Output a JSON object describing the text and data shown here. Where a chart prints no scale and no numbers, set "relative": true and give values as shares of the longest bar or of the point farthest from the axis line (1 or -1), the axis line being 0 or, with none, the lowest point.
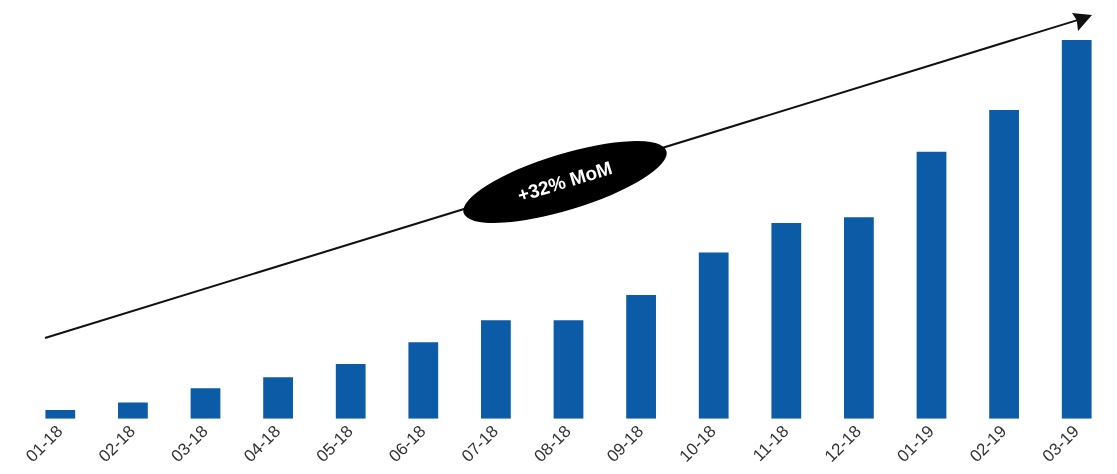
{
  "chart_data": {
    "type": "bar",
    "relative": true,
    "categories": [
      "01-18",
      "02-18",
      "03-18",
      "04-18",
      "05-18",
      "06-18",
      "07-18",
      "08-18",
      "09-18",
      "10-18",
      "11-18",
      "12-18",
      "01-19",
      "02-19",
      "03-19"
    ],
    "values": [
      0.023,
      0.043,
      0.081,
      0.11,
      0.145,
      0.202,
      0.26,
      0.26,
      0.327,
      0.439,
      0.517,
      0.532,
      0.705,
      0.815,
      1
    ],
    "color": "#0b5ba6",
    "annotations": [
      "+32% MoM"
    ],
    "grid": false,
    "legend": false
  }
}
